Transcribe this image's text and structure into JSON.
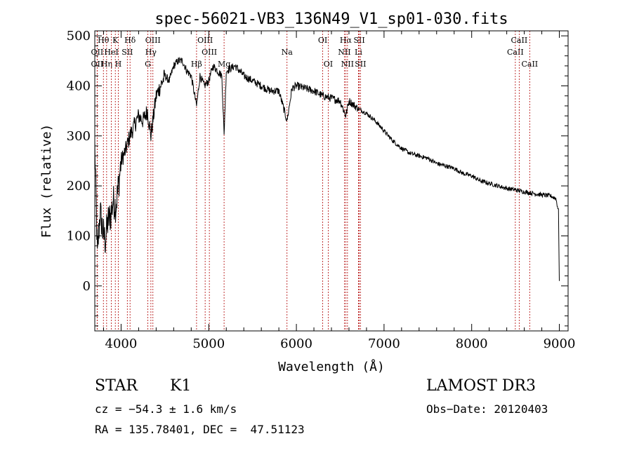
{
  "chart_data": {
    "type": "line",
    "title": "spec-56021-VB3_136N49_V1_sp01-030.fits",
    "xlabel": "Wavelength (Å)",
    "ylabel": "Flux (relative)",
    "xlim": [
      3700,
      9100
    ],
    "ylim": [
      -90,
      510
    ],
    "xticks": [
      4000,
      5000,
      6000,
      7000,
      8000,
      9000
    ],
    "yticks": [
      0,
      100,
      200,
      300,
      400,
      500
    ],
    "series": [
      {
        "name": "spectrum",
        "x": [
          3700,
          3730,
          3760,
          3790,
          3820,
          3850,
          3880,
          3910,
          3940,
          3970,
          4000,
          4050,
          4100,
          4150,
          4200,
          4250,
          4300,
          4340,
          4400,
          4450,
          4500,
          4550,
          4600,
          4650,
          4700,
          4750,
          4800,
          4861,
          4900,
          4950,
          5000,
          5050,
          5100,
          5150,
          5175,
          5200,
          5300,
          5400,
          5500,
          5600,
          5700,
          5800,
          5893,
          5950,
          6000,
          6100,
          6200,
          6300,
          6400,
          6500,
          6563,
          6600,
          6700,
          6800,
          6900,
          7000,
          7100,
          7200,
          7300,
          7400,
          7500,
          7600,
          7700,
          7800,
          7900,
          8000,
          8100,
          8200,
          8300,
          8400,
          8500,
          8600,
          8700,
          8800,
          8900,
          8960,
          8990,
          9000
        ],
        "values": [
          280,
          60,
          150,
          110,
          90,
          130,
          140,
          170,
          160,
          200,
          250,
          270,
          300,
          320,
          340,
          330,
          350,
          300,
          380,
          400,
          420,
          410,
          440,
          450,
          450,
          430,
          420,
          360,
          420,
          400,
          410,
          440,
          430,
          420,
          300,
          430,
          440,
          420,
          410,
          400,
          390,
          390,
          330,
          395,
          400,
          395,
          390,
          380,
          375,
          370,
          340,
          370,
          355,
          345,
          330,
          310,
          290,
          275,
          265,
          260,
          255,
          245,
          240,
          235,
          225,
          220,
          210,
          205,
          200,
          195,
          192,
          188,
          185,
          182,
          180,
          175,
          150,
          10
        ]
      }
    ],
    "spectral_lines": [
      {
        "label": "Hθ",
        "wavelength": 3798,
        "row": 0
      },
      {
        "label": "OII",
        "wavelength": 3727,
        "row": 1
      },
      {
        "label": "OII",
        "wavelength": 3727,
        "row": 2
      },
      {
        "label": "Hη",
        "wavelength": 3835,
        "row": 2
      },
      {
        "label": "HeI",
        "wavelength": 3889,
        "row": 1
      },
      {
        "label": "K",
        "wavelength": 3934,
        "row": 0
      },
      {
        "label": "H",
        "wavelength": 3968,
        "row": 2
      },
      {
        "label": "SII",
        "wavelength": 4071,
        "row": 1
      },
      {
        "label": "Hδ",
        "wavelength": 4102,
        "row": 0
      },
      {
        "label": "OIII",
        "wavelength": 4363,
        "row": 0
      },
      {
        "label": "Hγ",
        "wavelength": 4340,
        "row": 1
      },
      {
        "label": "G",
        "wavelength": 4305,
        "row": 2
      },
      {
        "label": "Hβ",
        "wavelength": 4861,
        "row": 2
      },
      {
        "label": "OIII",
        "wavelength": 4959,
        "row": 0
      },
      {
        "label": "OIII",
        "wavelength": 5007,
        "row": 1
      },
      {
        "label": "Mg",
        "wavelength": 5175,
        "row": 2
      },
      {
        "label": "Na",
        "wavelength": 5893,
        "row": 1
      },
      {
        "label": "OI",
        "wavelength": 6300,
        "row": 0
      },
      {
        "label": "OI",
        "wavelength": 6363,
        "row": 2
      },
      {
        "label": "Hα",
        "wavelength": 6563,
        "row": 0
      },
      {
        "label": "NII",
        "wavelength": 6548,
        "row": 1
      },
      {
        "label": "NII",
        "wavelength": 6583,
        "row": 2
      },
      {
        "label": "SII",
        "wavelength": 6717,
        "row": 0
      },
      {
        "label": "Li",
        "wavelength": 6708,
        "row": 1
      },
      {
        "label": "SII",
        "wavelength": 6731,
        "row": 2
      },
      {
        "label": "CaII",
        "wavelength": 8498,
        "row": 1
      },
      {
        "label": "CaII",
        "wavelength": 8542,
        "row": 0
      },
      {
        "label": "CaII",
        "wavelength": 8662,
        "row": 2
      }
    ]
  },
  "info": {
    "class": "STAR",
    "subclass": "K1",
    "cz": "cz = −54.3 ± 1.6 km/s",
    "radec": "RA = 135.78401, DEC =  47.51123",
    "survey": "LAMOST DR3",
    "obsdate": "Obs−Date: 20120403"
  },
  "colors": {
    "spectrum": "#000000",
    "line_markers": "#b00000",
    "axes": "#000000"
  }
}
